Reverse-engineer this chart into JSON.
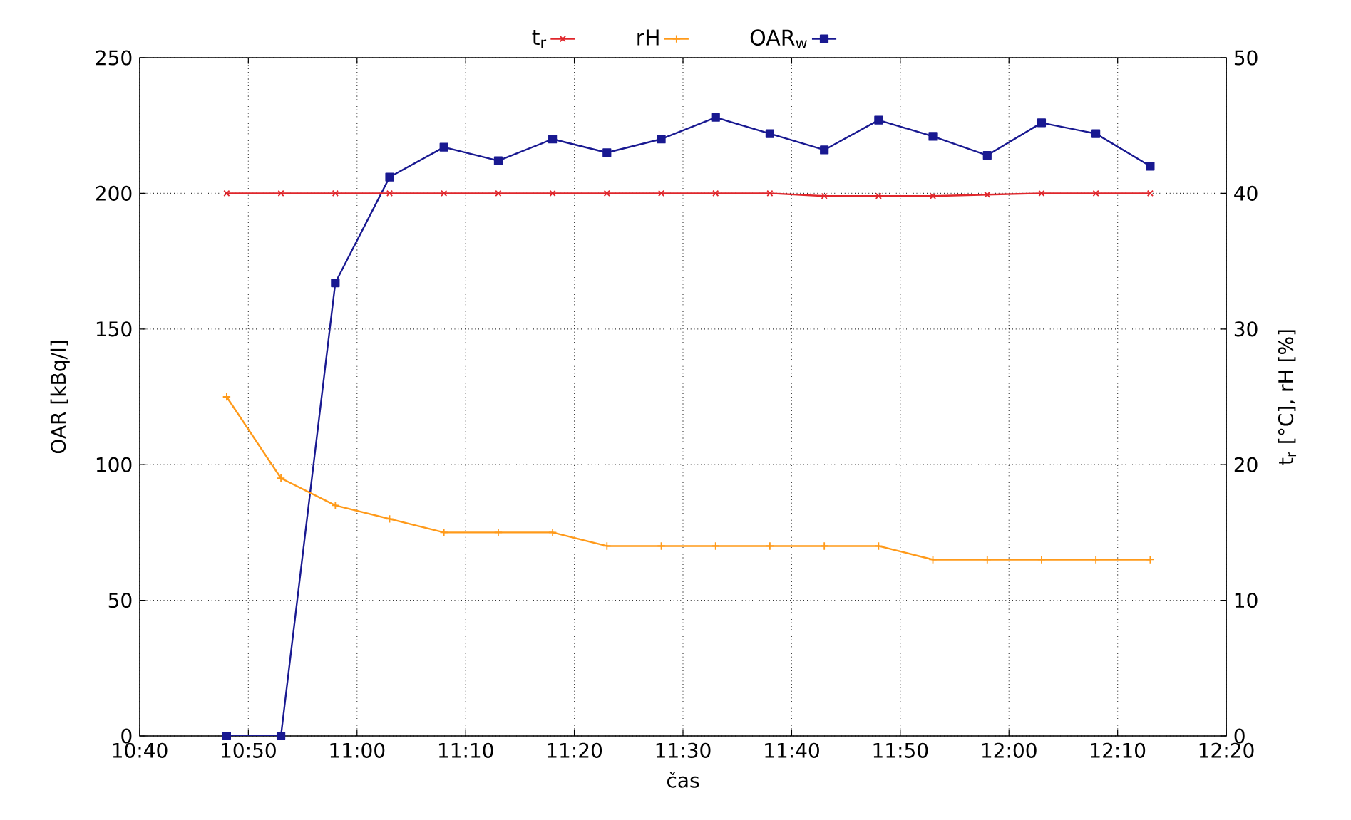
{
  "chart_data": {
    "type": "line",
    "xlabel": "čas",
    "ylabel": "OAR [kBq/l]",
    "y2label": "t$_{r}$ [°C], rH [%]",
    "x": [
      10.8,
      10.8833,
      10.9667,
      11.05,
      11.1333,
      11.2167,
      11.3,
      11.3833,
      11.4667,
      11.55,
      11.6333,
      11.7167,
      11.8,
      11.8833,
      11.9667,
      12.05,
      12.1333,
      12.2167
    ],
    "series": [
      {
        "name": "t$_{r}$",
        "color": "#e0262b",
        "axis": "y2",
        "marker": "cross",
        "values": [
          40,
          40,
          40,
          40,
          40,
          40,
          40,
          40,
          40,
          40,
          40,
          39.8,
          39.8,
          39.8,
          39.9,
          40,
          40,
          40
        ]
      },
      {
        "name": "rH",
        "color": "#ff9a1a",
        "axis": "y2",
        "marker": "plus",
        "values": [
          25,
          19,
          17,
          16,
          15,
          15,
          15,
          14,
          14,
          14,
          14,
          14,
          14,
          13,
          13,
          13,
          13,
          13
        ]
      },
      {
        "name": "OAR$_{w}$",
        "color": "#191991",
        "marker": "square",
        "values": [
          0,
          0,
          167,
          206,
          217,
          212,
          220,
          215,
          220,
          228,
          222,
          216,
          227,
          221,
          214,
          226,
          222,
          210
        ]
      }
    ],
    "xlim": [
      10.6667,
      12.3333
    ],
    "xticks": [
      {
        "value": 10.6667,
        "label": "10:40"
      },
      {
        "value": 10.8333,
        "label": "10:50"
      },
      {
        "value": 11,
        "label": "11:00"
      },
      {
        "value": 11.1667,
        "label": "11:10"
      },
      {
        "value": 11.3333,
        "label": "11:20"
      },
      {
        "value": 11.5,
        "label": "11:30"
      },
      {
        "value": 11.6667,
        "label": "11:40"
      },
      {
        "value": 11.8333,
        "label": "11:50"
      },
      {
        "value": 12,
        "label": "12:00"
      },
      {
        "value": 12.1667,
        "label": "12:10"
      },
      {
        "value": 12.3333,
        "label": "12:20"
      }
    ],
    "ylim": [
      0,
      250
    ],
    "yticks": [
      0,
      50,
      100,
      150,
      200,
      250
    ],
    "y2lim": [
      0,
      50
    ],
    "y2ticks": [
      0,
      10,
      20,
      30,
      40,
      50
    ],
    "grid": true,
    "legend": "top",
    "line_style": "solid"
  }
}
